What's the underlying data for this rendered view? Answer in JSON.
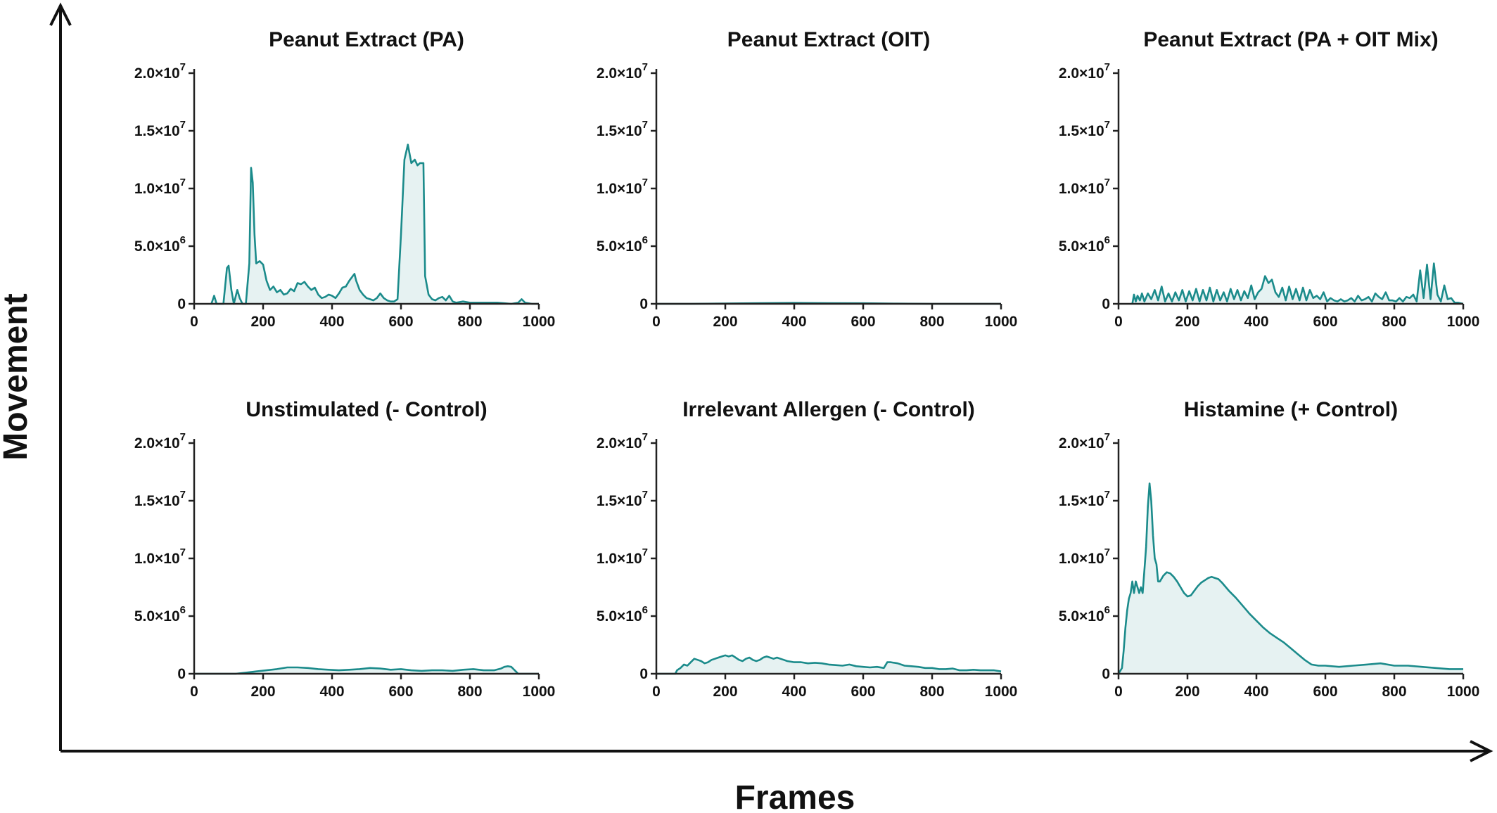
{
  "figure": {
    "xlabel": "Frames",
    "ylabel": "Movement",
    "line_color": "#1b8b8b",
    "fill_color": "#e3f1f1"
  },
  "chart_data": [
    {
      "type": "area",
      "title": "Peanut Extract (PA)",
      "xlim": [
        0,
        1000
      ],
      "ylim": [
        0,
        20000000
      ],
      "x_ticks": [
        "0",
        "200",
        "400",
        "600",
        "800",
        "1000"
      ],
      "y_ticks": [
        {
          "value": 0,
          "mantissa": "0",
          "exp": ""
        },
        {
          "value": 5000000,
          "mantissa": "5.0×10",
          "exp": "6"
        },
        {
          "value": 10000000,
          "mantissa": "1.0×10",
          "exp": "7"
        },
        {
          "value": 15000000,
          "mantissa": "1.5×10",
          "exp": "7"
        },
        {
          "value": 20000000,
          "mantissa": "2.0×10",
          "exp": "7"
        }
      ],
      "x": [
        50,
        58,
        65,
        75,
        85,
        95,
        100,
        108,
        115,
        125,
        132,
        140,
        150,
        160,
        165,
        170,
        175,
        180,
        190,
        200,
        210,
        220,
        230,
        240,
        250,
        260,
        270,
        280,
        290,
        300,
        310,
        320,
        330,
        340,
        350,
        360,
        370,
        380,
        390,
        400,
        410,
        420,
        430,
        440,
        450,
        460,
        465,
        470,
        480,
        490,
        500,
        510,
        520,
        530,
        540,
        550,
        560,
        570,
        580,
        590,
        600,
        610,
        620,
        630,
        640,
        648,
        655,
        660,
        665,
        670,
        680,
        690,
        700,
        710,
        720,
        730,
        740,
        750,
        760,
        780,
        800,
        820,
        840,
        860,
        880,
        900,
        920,
        940,
        950,
        960,
        980,
        1000
      ],
      "values": [
        0,
        700000,
        0,
        0,
        0,
        3100000,
        3300000,
        1200000,
        0,
        1200000,
        500000,
        0,
        0,
        3500000,
        11800000,
        10500000,
        6000000,
        3500000,
        3700000,
        3400000,
        2000000,
        1200000,
        1500000,
        1000000,
        1200000,
        800000,
        900000,
        1300000,
        1100000,
        1800000,
        1700000,
        1900000,
        1500000,
        1200000,
        1400000,
        800000,
        500000,
        600000,
        800000,
        700000,
        500000,
        900000,
        1400000,
        1500000,
        2000000,
        2400000,
        2600000,
        2000000,
        1200000,
        800000,
        500000,
        400000,
        300000,
        500000,
        900000,
        500000,
        300000,
        200000,
        200000,
        400000,
        6000000,
        12500000,
        13800000,
        12200000,
        12500000,
        12000000,
        12200000,
        12200000,
        12200000,
        2400000,
        800000,
        400000,
        300000,
        500000,
        600000,
        300000,
        700000,
        200000,
        100000,
        200000,
        100000,
        100000,
        100000,
        100000,
        100000,
        50000,
        0,
        100000,
        400000,
        100000,
        0,
        0
      ]
    },
    {
      "type": "area",
      "title": "Peanut Extract (OIT)",
      "xlim": [
        0,
        1000
      ],
      "ylim": [
        0,
        20000000
      ],
      "x_ticks": [
        "0",
        "200",
        "400",
        "600",
        "800",
        "1000"
      ],
      "y_ticks": [
        {
          "value": 0,
          "mantissa": "0",
          "exp": ""
        },
        {
          "value": 5000000,
          "mantissa": "5.0×10",
          "exp": "6"
        },
        {
          "value": 10000000,
          "mantissa": "1.0×10",
          "exp": "7"
        },
        {
          "value": 15000000,
          "mantissa": "1.5×10",
          "exp": "7"
        },
        {
          "value": 20000000,
          "mantissa": "2.0×10",
          "exp": "7"
        }
      ],
      "x": [
        0,
        100,
        200,
        300,
        400,
        500,
        600,
        700,
        800,
        900,
        1000
      ],
      "values": [
        0,
        0,
        30000,
        60000,
        80000,
        60000,
        50000,
        20000,
        0,
        0,
        0
      ]
    },
    {
      "type": "area",
      "title": "Peanut Extract (PA + OIT Mix)",
      "xlim": [
        0,
        1000
      ],
      "ylim": [
        0,
        20000000
      ],
      "x_ticks": [
        "0",
        "200",
        "400",
        "600",
        "800",
        "1000"
      ],
      "y_ticks": [
        {
          "value": 0,
          "mantissa": "0",
          "exp": ""
        },
        {
          "value": 5000000,
          "mantissa": "5.0×10",
          "exp": "6"
        },
        {
          "value": 10000000,
          "mantissa": "1.0×10",
          "exp": "7"
        },
        {
          "value": 15000000,
          "mantissa": "1.5×10",
          "exp": "7"
        },
        {
          "value": 20000000,
          "mantissa": "2.0×10",
          "exp": "7"
        }
      ],
      "x": [
        40,
        45,
        50,
        55,
        62,
        68,
        75,
        85,
        95,
        105,
        115,
        125,
        135,
        145,
        155,
        165,
        175,
        185,
        195,
        205,
        215,
        225,
        235,
        245,
        255,
        265,
        275,
        285,
        295,
        305,
        315,
        325,
        335,
        345,
        355,
        365,
        375,
        385,
        395,
        405,
        415,
        425,
        435,
        445,
        455,
        465,
        475,
        485,
        495,
        505,
        515,
        525,
        535,
        545,
        555,
        565,
        575,
        585,
        595,
        605,
        615,
        625,
        635,
        645,
        655,
        665,
        675,
        685,
        695,
        705,
        715,
        725,
        735,
        745,
        755,
        765,
        775,
        785,
        795,
        805,
        815,
        825,
        835,
        845,
        855,
        865,
        875,
        885,
        895,
        905,
        915,
        925,
        935,
        945,
        955,
        965,
        975,
        985,
        1000
      ],
      "values": [
        0,
        800000,
        200000,
        700000,
        300000,
        900000,
        200000,
        900000,
        400000,
        1200000,
        300000,
        1500000,
        200000,
        900000,
        200000,
        1000000,
        300000,
        1200000,
        200000,
        1100000,
        300000,
        1300000,
        200000,
        1200000,
        300000,
        1400000,
        200000,
        1200000,
        300000,
        1000000,
        200000,
        1300000,
        400000,
        1200000,
        300000,
        1100000,
        500000,
        1600000,
        400000,
        1000000,
        1300000,
        2400000,
        1800000,
        2100000,
        1000000,
        600000,
        1400000,
        300000,
        1500000,
        400000,
        1300000,
        300000,
        1400000,
        300000,
        1200000,
        500000,
        700000,
        400000,
        1000000,
        200000,
        500000,
        300000,
        200000,
        400000,
        200000,
        300000,
        500000,
        200000,
        700000,
        300000,
        400000,
        600000,
        200000,
        900000,
        600000,
        400000,
        1000000,
        300000,
        300000,
        200000,
        500000,
        200000,
        600000,
        500000,
        800000,
        200000,
        2900000,
        500000,
        3400000,
        400000,
        3500000,
        800000,
        200000,
        1600000,
        400000,
        500000,
        100000,
        100000,
        0
      ]
    },
    {
      "type": "area",
      "title": "Unstimulated (- Control)",
      "xlim": [
        0,
        1000
      ],
      "ylim": [
        0,
        20000000
      ],
      "x_ticks": [
        "0",
        "200",
        "400",
        "600",
        "800",
        "1000"
      ],
      "y_ticks": [
        {
          "value": 0,
          "mantissa": "0",
          "exp": ""
        },
        {
          "value": 5000000,
          "mantissa": "5.0×10",
          "exp": "6"
        },
        {
          "value": 10000000,
          "mantissa": "1.0×10",
          "exp": "7"
        },
        {
          "value": 15000000,
          "mantissa": "1.5×10",
          "exp": "7"
        },
        {
          "value": 20000000,
          "mantissa": "2.0×10",
          "exp": "7"
        }
      ],
      "x": [
        0,
        100,
        120,
        150,
        180,
        210,
        240,
        270,
        300,
        330,
        360,
        390,
        420,
        450,
        480,
        510,
        540,
        570,
        600,
        630,
        660,
        690,
        720,
        750,
        780,
        810,
        840,
        870,
        890,
        900,
        910,
        920,
        940,
        960,
        1000
      ],
      "values": [
        0,
        0,
        0,
        100000,
        200000,
        300000,
        400000,
        550000,
        550000,
        500000,
        400000,
        350000,
        300000,
        350000,
        400000,
        500000,
        450000,
        350000,
        400000,
        300000,
        250000,
        300000,
        300000,
        250000,
        350000,
        400000,
        300000,
        300000,
        450000,
        600000,
        650000,
        600000,
        0,
        0,
        0
      ]
    },
    {
      "type": "area",
      "title": "Irrelevant Allergen (- Control)",
      "xlim": [
        0,
        1000
      ],
      "ylim": [
        0,
        20000000
      ],
      "x_ticks": [
        "0",
        "200",
        "400",
        "600",
        "800",
        "1000"
      ],
      "y_ticks": [
        {
          "value": 0,
          "mantissa": "0",
          "exp": ""
        },
        {
          "value": 5000000,
          "mantissa": "5.0×10",
          "exp": "6"
        },
        {
          "value": 10000000,
          "mantissa": "1.0×10",
          "exp": "7"
        },
        {
          "value": 15000000,
          "mantissa": "1.5×10",
          "exp": "7"
        },
        {
          "value": 20000000,
          "mantissa": "2.0×10",
          "exp": "7"
        }
      ],
      "x": [
        0,
        55,
        60,
        70,
        80,
        90,
        100,
        110,
        120,
        130,
        140,
        150,
        160,
        170,
        180,
        190,
        200,
        210,
        220,
        230,
        240,
        250,
        260,
        270,
        280,
        290,
        300,
        310,
        320,
        330,
        340,
        350,
        360,
        370,
        380,
        400,
        420,
        440,
        460,
        480,
        500,
        520,
        540,
        560,
        580,
        600,
        620,
        640,
        660,
        670,
        680,
        700,
        720,
        740,
        760,
        780,
        800,
        820,
        840,
        860,
        880,
        900,
        920,
        940,
        960,
        980,
        1000
      ],
      "values": [
        0,
        0,
        300000,
        500000,
        800000,
        700000,
        1000000,
        1300000,
        1200000,
        1100000,
        900000,
        1000000,
        1200000,
        1300000,
        1400000,
        1500000,
        1600000,
        1500000,
        1600000,
        1400000,
        1200000,
        1100000,
        1300000,
        1400000,
        1200000,
        1100000,
        1200000,
        1400000,
        1500000,
        1400000,
        1300000,
        1400000,
        1300000,
        1200000,
        1100000,
        1000000,
        1000000,
        900000,
        950000,
        900000,
        800000,
        750000,
        700000,
        800000,
        650000,
        600000,
        550000,
        600000,
        500000,
        1000000,
        1000000,
        900000,
        700000,
        650000,
        600000,
        500000,
        500000,
        400000,
        400000,
        450000,
        300000,
        300000,
        350000,
        300000,
        300000,
        300000,
        200000
      ]
    },
    {
      "type": "area",
      "title": "Histamine (+ Control)",
      "xlim": [
        0,
        1000
      ],
      "ylim": [
        0,
        20000000
      ],
      "x_ticks": [
        "0",
        "200",
        "400",
        "600",
        "800",
        "1000"
      ],
      "y_ticks": [
        {
          "value": 0,
          "mantissa": "0",
          "exp": ""
        },
        {
          "value": 5000000,
          "mantissa": "5.0×10",
          "exp": "6"
        },
        {
          "value": 10000000,
          "mantissa": "1.0×10",
          "exp": "7"
        },
        {
          "value": 15000000,
          "mantissa": "1.5×10",
          "exp": "7"
        },
        {
          "value": 20000000,
          "mantissa": "2.0×10",
          "exp": "7"
        }
      ],
      "x": [
        0,
        10,
        15,
        20,
        25,
        30,
        35,
        40,
        45,
        50,
        55,
        60,
        65,
        70,
        75,
        80,
        85,
        90,
        95,
        100,
        105,
        110,
        115,
        120,
        130,
        140,
        150,
        160,
        170,
        180,
        190,
        200,
        210,
        220,
        230,
        240,
        250,
        260,
        270,
        280,
        290,
        300,
        320,
        340,
        360,
        380,
        400,
        420,
        440,
        460,
        480,
        500,
        520,
        540,
        560,
        580,
        600,
        640,
        680,
        720,
        760,
        800,
        840,
        880,
        920,
        960,
        1000
      ],
      "values": [
        0,
        500000,
        2000000,
        4000000,
        5500000,
        6500000,
        7000000,
        8000000,
        7000000,
        8000000,
        7500000,
        7000000,
        7500000,
        7000000,
        9000000,
        11000000,
        14500000,
        16500000,
        15000000,
        12000000,
        10000000,
        9500000,
        8000000,
        8000000,
        8500000,
        8800000,
        8700000,
        8400000,
        8000000,
        7500000,
        7000000,
        6700000,
        6800000,
        7200000,
        7600000,
        7900000,
        8100000,
        8300000,
        8400000,
        8300000,
        8200000,
        7900000,
        7200000,
        6600000,
        5900000,
        5200000,
        4600000,
        4000000,
        3500000,
        3100000,
        2700000,
        2200000,
        1700000,
        1200000,
        800000,
        700000,
        700000,
        600000,
        700000,
        800000,
        900000,
        700000,
        700000,
        600000,
        500000,
        400000,
        400000
      ]
    }
  ]
}
